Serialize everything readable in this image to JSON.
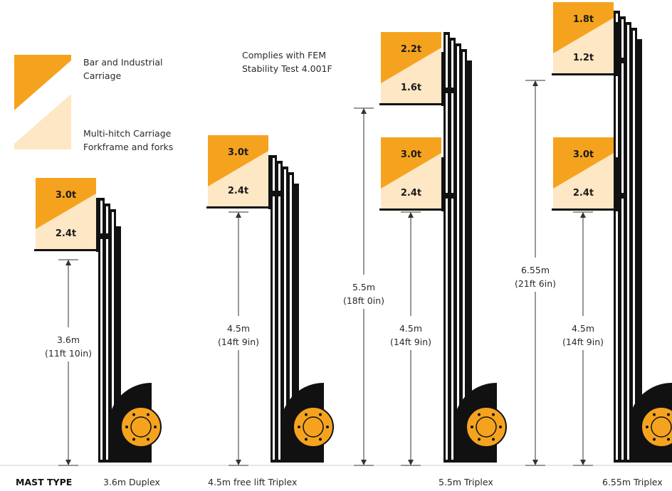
{
  "colors": {
    "orange": "#f5a31f",
    "cream": "#fde7c5",
    "black": "#111111",
    "hub": "#f5a31f",
    "line": "#333333"
  },
  "legend": {
    "orange_label_1": "Bar and Industrial",
    "orange_label_2": "Carriage",
    "cream_label_1": "Multi-hitch Carriage",
    "cream_label_2": "Forkframe and forks"
  },
  "note": {
    "line1": "Complies with FEM",
    "line2": "Stability Test 4.001F"
  },
  "footer": {
    "header": "MAST TYPE",
    "types": [
      "3.6m Duplex",
      "4.5m free lift Triplex",
      "5.5m Triplex",
      "6.55m Triplex"
    ]
  },
  "masts": [
    {
      "name": "3.6m Duplex",
      "carriages": [
        {
          "upper": "3.0t",
          "lower": "2.4t"
        }
      ],
      "dims": [
        {
          "metric": "3.6m",
          "imperial": "(11ft 10in)"
        }
      ]
    },
    {
      "name": "4.5m free lift Triplex",
      "carriages": [
        {
          "upper": "3.0t",
          "lower": "2.4t"
        }
      ],
      "dims": [
        {
          "metric": "4.5m",
          "imperial": "(14ft 9in)"
        }
      ]
    },
    {
      "name": "5.5m Triplex",
      "carriages": [
        {
          "upper": "2.2t",
          "lower": "1.6t"
        },
        {
          "upper": "3.0t",
          "lower": "2.4t"
        }
      ],
      "dims": [
        {
          "metric": "5.5m",
          "imperial": "(18ft 0in)"
        },
        {
          "metric": "4.5m",
          "imperial": "(14ft 9in)"
        }
      ]
    },
    {
      "name": "6.55m Triplex",
      "carriages": [
        {
          "upper": "1.8t",
          "lower": "1.2t"
        },
        {
          "upper": "3.0t",
          "lower": "2.4t"
        }
      ],
      "dims": [
        {
          "metric": "6.55m",
          "imperial": "(21ft 6in)"
        },
        {
          "metric": "4.5m",
          "imperial": "(14ft 9in)"
        }
      ]
    }
  ]
}
